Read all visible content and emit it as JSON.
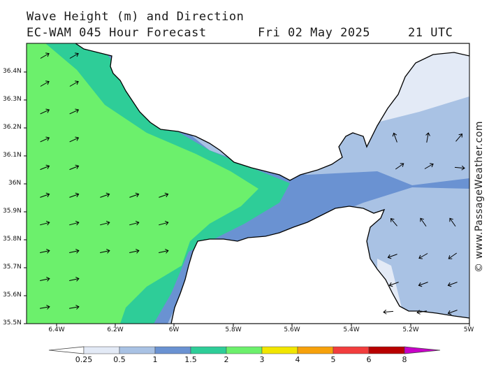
{
  "header": {
    "title": "Wave Height (m) and Direction",
    "model_line": "EC-WAM 045 Hour Forecast",
    "date": "Fri 02 May 2025",
    "time": "21 UTC"
  },
  "map": {
    "lat_ticks": [
      "36.4N",
      "36.3N",
      "36.2N",
      "36.1N",
      "36N",
      "35.9N",
      "35.8N",
      "35.7N",
      "35.6N",
      "35.5N"
    ],
    "lon_ticks": [
      "6.4W",
      "6.2W",
      "6W",
      "5.8W",
      "5.6W",
      "5.4W",
      "5.2W",
      "5W"
    ],
    "wave_colors": {
      "0.25": "#e3eaf6",
      "0.5": "#a9c2e4",
      "1": "#6a92d2",
      "1.5": "#2ecd98",
      "2": "#6cf06c",
      "3": "#f2e600",
      "4": "#f7a10b",
      "5": "#f23d3d",
      "6": "#b80000",
      "8": "#c800c8"
    },
    "land_color": "#ffffff",
    "coast_color": "#000000"
  },
  "legend": {
    "scale_labels": [
      "0.25",
      "0.5",
      "1",
      "1.5",
      "2",
      "3",
      "4",
      "5",
      "6",
      "8"
    ]
  },
  "credit": "© www.PassageWeather.com"
}
